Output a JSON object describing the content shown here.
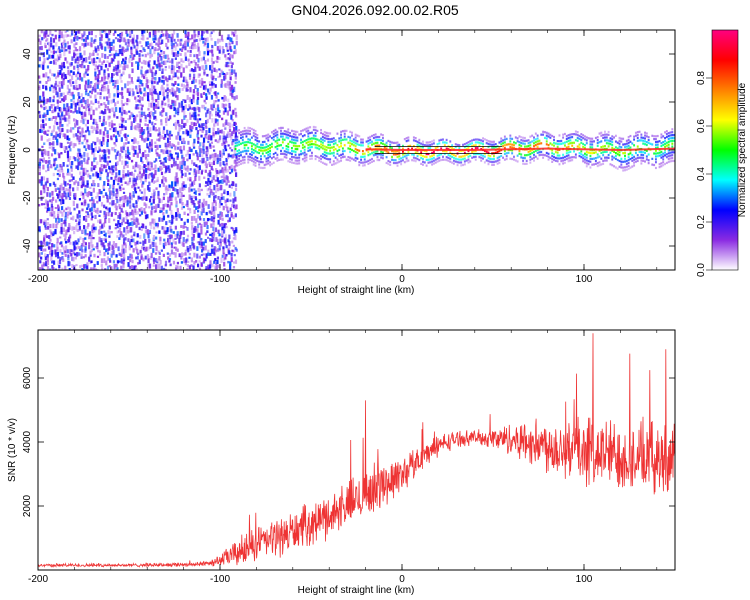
{
  "title": "GN04.2026.092.00.02.R05",
  "chart_data": [
    {
      "type": "heatmap",
      "name": "spectrogram",
      "xlabel": "Height of straight line (km)",
      "ylabel": "Frequency (Hz)",
      "xlim": [
        -200,
        150
      ],
      "ylim": [
        -50,
        50
      ],
      "xticks": [
        -200,
        -100,
        0,
        100
      ],
      "yticks": [
        -40,
        -20,
        0,
        20,
        40
      ],
      "colorbar": {
        "label": "Normalized spectral amplitude",
        "range": [
          0,
          1
        ],
        "ticks": [
          "0.0",
          "0.2",
          "0.4",
          "0.6",
          "0.8"
        ],
        "tick_values": [
          0,
          0.2,
          0.4,
          0.6,
          0.8
        ],
        "colors": [
          "#ffffff",
          "#8a2be2",
          "#0000ff",
          "#00ffff",
          "#00ff00",
          "#ffff00",
          "#ff8000",
          "#ff0000",
          "#ff0080"
        ]
      },
      "noise_region": {
        "x_range": [
          -200,
          -92
        ],
        "amplitude_range": [
          0.0,
          0.25
        ]
      },
      "ridge": {
        "description": "narrow signal centered near 0 Hz",
        "x": [
          -92,
          -80,
          -60,
          -40,
          -20,
          0,
          20,
          40,
          60,
          80,
          100,
          120,
          150
        ],
        "center_freq": [
          2,
          1,
          3,
          2,
          1,
          0,
          0,
          0,
          1,
          2,
          1,
          0,
          2
        ],
        "peak_amplitude": [
          0.45,
          0.5,
          0.55,
          0.6,
          0.75,
          0.9,
          0.95,
          0.95,
          0.85,
          0.75,
          0.65,
          0.55,
          0.5
        ]
      }
    },
    {
      "type": "line",
      "name": "snr",
      "xlabel": "Height of straight line (km)",
      "ylabel": "SNR (10 * v/v)",
      "xlim": [
        -200,
        150
      ],
      "ylim": [
        0,
        7500
      ],
      "xticks": [
        -200,
        -100,
        0,
        100
      ],
      "yticks": [
        2000,
        4000,
        6000
      ],
      "color": "#ee3333",
      "envelope": {
        "x": [
          -200,
          -150,
          -110,
          -100,
          -90,
          -80,
          -70,
          -60,
          -50,
          -40,
          -30,
          -20,
          -10,
          0,
          10,
          20,
          30,
          40,
          50,
          60,
          70,
          80,
          90,
          100,
          110,
          120,
          130,
          140,
          150
        ],
        "mean": [
          150,
          150,
          180,
          300,
          550,
          800,
          1000,
          1200,
          1450,
          1700,
          2050,
          2400,
          2700,
          3000,
          3500,
          3900,
          4100,
          4150,
          4100,
          4100,
          4000,
          3900,
          3800,
          3750,
          3650,
          3600,
          3500,
          3500,
          3500
        ],
        "spread": [
          60,
          60,
          80,
          200,
          550,
          650,
          700,
          750,
          750,
          800,
          850,
          900,
          850,
          700,
          500,
          400,
          300,
          250,
          400,
          600,
          800,
          1000,
          1200,
          1300,
          1300,
          1300,
          1300,
          1300,
          1300
        ]
      },
      "notable_peaks": [
        {
          "x": -20,
          "y": 5300
        },
        {
          "x": 105,
          "y": 7400
        },
        {
          "x": 145,
          "y": 6900
        }
      ]
    }
  ]
}
